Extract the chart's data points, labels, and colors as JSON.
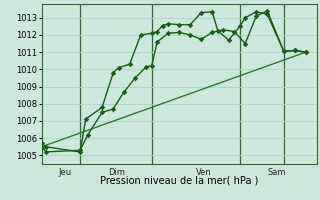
{
  "xlabel": "Pression niveau de la mer( hPa )",
  "bg_color": "#cce8dd",
  "grid_color": "#aad4c8",
  "line_color1": "#1a5c1a",
  "line_color2": "#1a5c1a",
  "line_color3": "#2d7a2d",
  "ylim": [
    1004.5,
    1013.8
  ],
  "xlim": [
    0,
    25
  ],
  "yticks": [
    1005,
    1006,
    1007,
    1008,
    1009,
    1010,
    1011,
    1012,
    1013
  ],
  "vline_positions": [
    3.5,
    10,
    18,
    22
  ],
  "day_labels": [
    "Jeu",
    "Dim",
    "Ven",
    "Sam"
  ],
  "day_positions": [
    1.5,
    6.0,
    14.0,
    20.5
  ],
  "series1_x": [
    0,
    0.4,
    3.5,
    4.0,
    5.5,
    6.5,
    7.0,
    8.0,
    9.0,
    10.0,
    10.5,
    11.0,
    11.5,
    12.5,
    13.5,
    14.5,
    15.5,
    16.0,
    17.0,
    18.0,
    18.5,
    19.5,
    20.5,
    22.0,
    23.0,
    24.0
  ],
  "series1_y": [
    1005.7,
    1005.5,
    1005.2,
    1007.1,
    1007.8,
    1009.8,
    1010.1,
    1010.3,
    1012.0,
    1012.1,
    1012.2,
    1012.55,
    1012.65,
    1012.6,
    1012.6,
    1013.3,
    1013.35,
    1012.25,
    1011.7,
    1012.5,
    1013.0,
    1013.35,
    1013.2,
    1011.05,
    1011.1,
    1011.0
  ],
  "series2_x": [
    0,
    0.4,
    3.5,
    4.2,
    5.5,
    6.5,
    7.5,
    8.5,
    9.5,
    10.0,
    10.5,
    11.5,
    12.5,
    13.5,
    14.5,
    15.5,
    16.5,
    17.5,
    18.5,
    19.5,
    20.5,
    22.0,
    23.0,
    24.0
  ],
  "series2_y": [
    1005.5,
    1005.2,
    1005.3,
    1006.2,
    1007.5,
    1007.7,
    1008.7,
    1009.5,
    1010.15,
    1010.2,
    1011.6,
    1012.1,
    1012.15,
    1012.0,
    1011.75,
    1012.15,
    1012.3,
    1012.2,
    1011.5,
    1013.1,
    1013.4,
    1011.05,
    1011.1,
    1011.0
  ],
  "series3_x": [
    0,
    24
  ],
  "series3_y": [
    1005.5,
    1011.0
  ],
  "marker_size": 2.8,
  "linewidth1": 1.0,
  "linewidth2": 1.0,
  "linewidth3": 1.0
}
